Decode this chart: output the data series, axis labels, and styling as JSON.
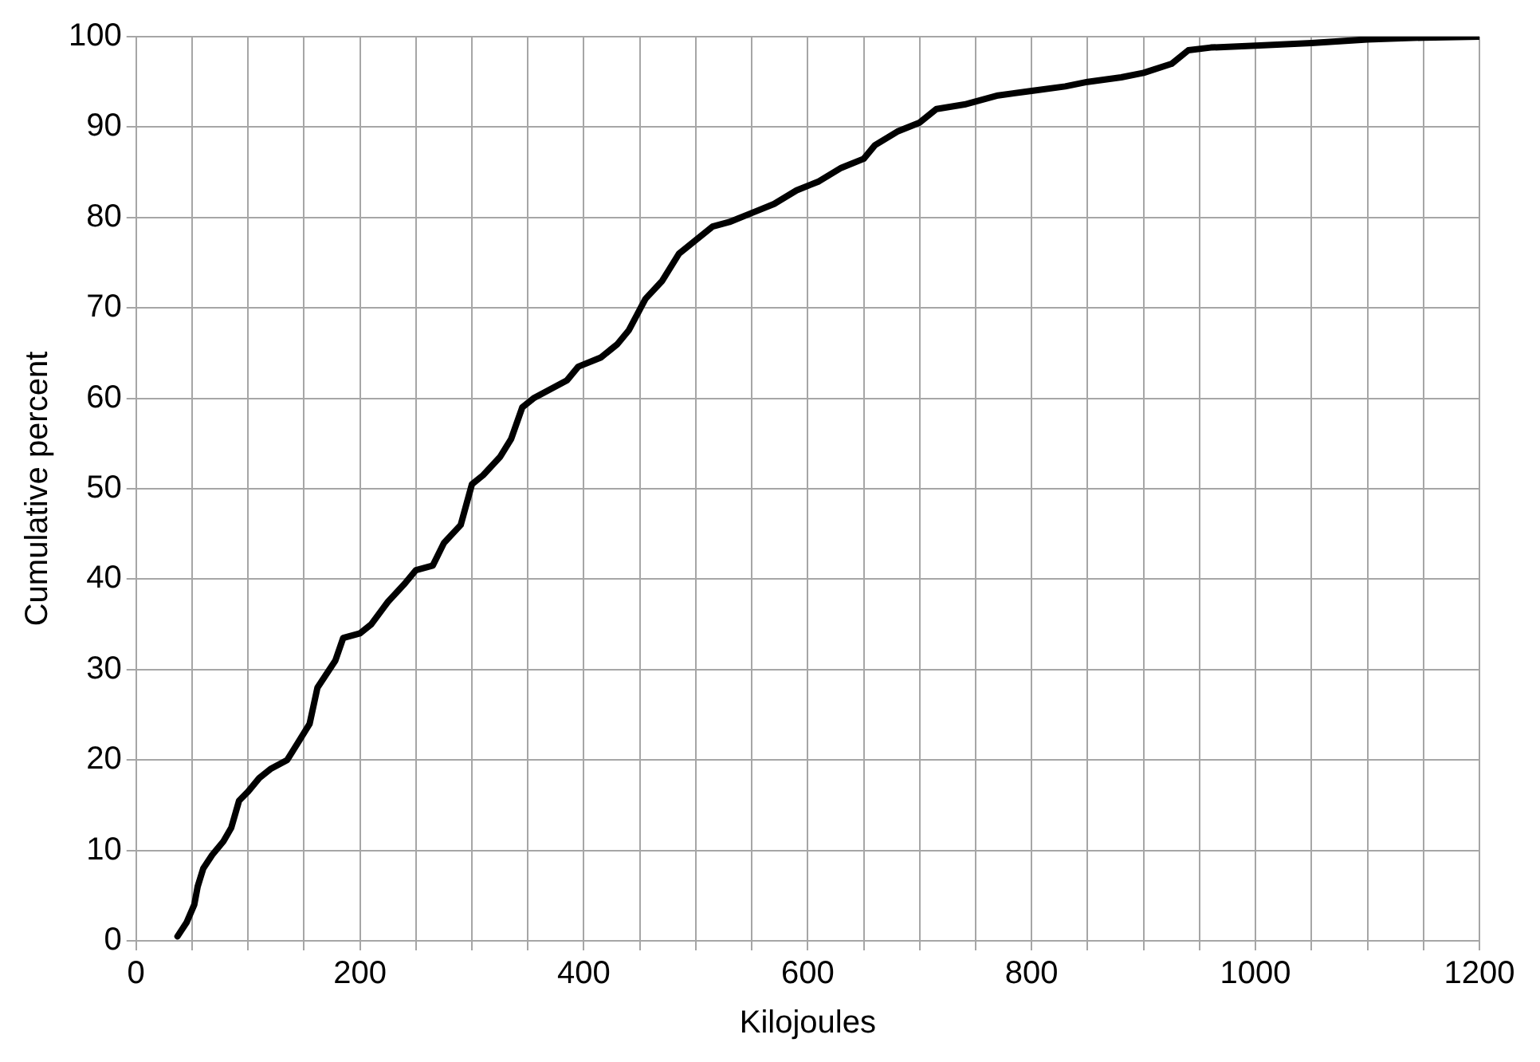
{
  "chart_data": {
    "type": "line",
    "xlabel": "Kilojoules",
    "ylabel": "Cumulative percent",
    "xlim": [
      0,
      1200
    ],
    "xticks": [
      0,
      {
        "value": 50,
        "label": null
      },
      200,
      {
        "value": 100,
        "label": null
      },
      {
        "value": 150,
        "label": null
      },
      {
        "value": 250,
        "label": null
      },
      {
        "value": 300,
        "label": null
      },
      {
        "value": 350,
        "label": null
      },
      400,
      {
        "value": 450,
        "label": null
      },
      {
        "value": 500,
        "label": null
      },
      {
        "value": 550,
        "label": null
      },
      600,
      {
        "value": 650,
        "label": null
      },
      {
        "value": 700,
        "label": null
      },
      {
        "value": 750,
        "label": null
      },
      800,
      {
        "value": 850,
        "label": null
      },
      {
        "value": 900,
        "label": null
      },
      {
        "value": 950,
        "label": null
      },
      1000,
      {
        "value": 1050,
        "label": null
      },
      {
        "value": 1100,
        "label": null
      },
      {
        "value": 1150,
        "label": null
      },
      1200
    ],
    "ylim": [
      0,
      100
    ],
    "yticks": [
      0,
      10,
      20,
      30,
      40,
      50,
      60,
      70,
      80,
      90,
      100
    ],
    "grid": true,
    "legend": false,
    "marker": "none",
    "line_style": "solid",
    "series": [
      {
        "color": "#000000",
        "x": [
          37,
          45,
          52,
          55,
          60,
          68,
          78,
          85,
          92,
          100,
          110,
          120,
          135,
          145,
          155,
          162,
          170,
          178,
          185,
          200,
          210,
          225,
          240,
          250,
          265,
          275,
          290,
          300,
          310,
          325,
          335,
          345,
          355,
          370,
          385,
          395,
          415,
          430,
          440,
          455,
          470,
          485,
          500,
          515,
          530,
          550,
          570,
          590,
          610,
          630,
          650,
          660,
          680,
          700,
          715,
          740,
          770,
          800,
          830,
          850,
          880,
          900,
          925,
          940,
          960,
          1000,
          1050,
          1100,
          1150,
          1200
        ],
        "values": [
          0.5,
          2,
          4,
          6,
          8,
          9.5,
          11,
          12.5,
          15.5,
          16.5,
          18,
          19,
          20,
          22,
          24,
          28,
          29.5,
          31,
          33.5,
          34,
          35,
          37.5,
          39.5,
          41,
          41.5,
          44,
          46,
          50.5,
          51.5,
          53.5,
          55.5,
          59,
          60,
          61,
          62,
          63.5,
          64.5,
          66,
          67.5,
          71,
          73,
          76,
          77.5,
          79,
          79.5,
          80.5,
          81.5,
          83,
          84,
          85.5,
          86.5,
          88,
          89.5,
          90.5,
          92,
          92.5,
          93.5,
          94,
          94.5,
          95,
          95.5,
          96,
          97,
          98.5,
          98.8,
          99,
          99.3,
          99.7,
          99.9,
          100
        ]
      }
    ]
  }
}
